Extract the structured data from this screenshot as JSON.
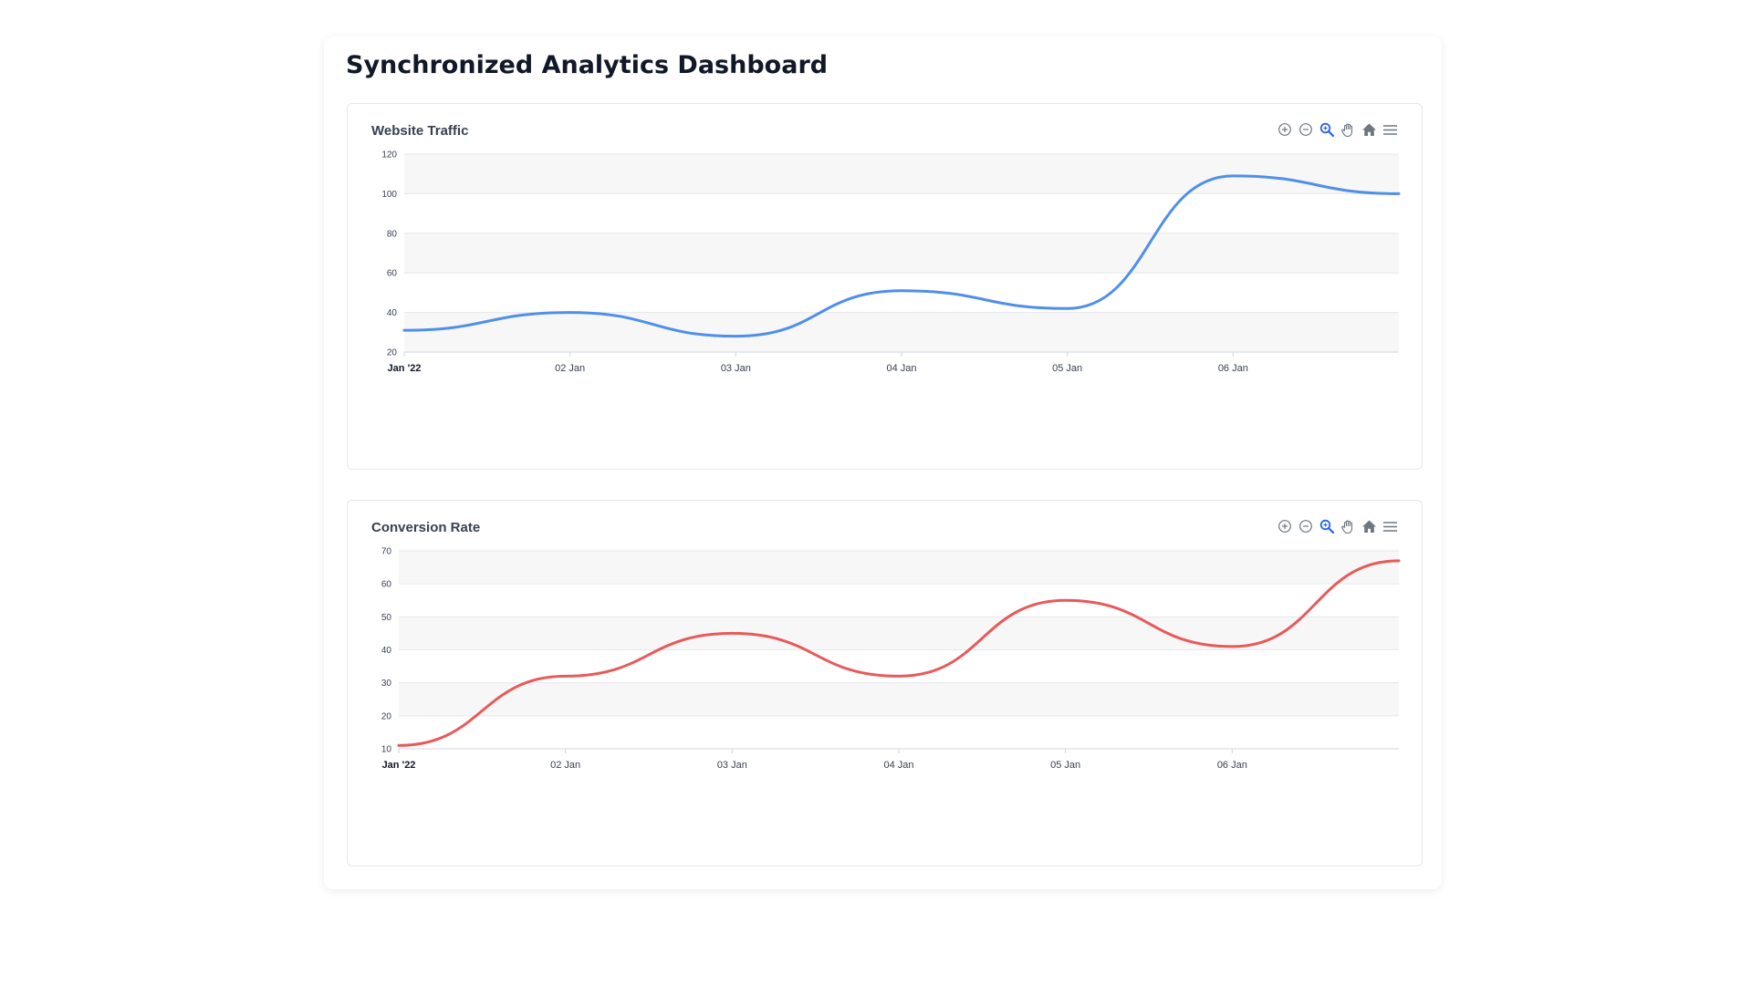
{
  "page": {
    "title": "Synchronized Analytics Dashboard"
  },
  "toolbar": {
    "icons": [
      "zoom-in-icon",
      "zoom-out-icon",
      "selection-zoom-icon",
      "pan-hand-icon",
      "reset-home-icon",
      "menu-icon"
    ],
    "icon_color": "#6e7681",
    "active_color": "#2563eb"
  },
  "chart_data": [
    {
      "type": "line",
      "title": "Website Traffic",
      "color": "#4f8fea",
      "x_tick_labels": [
        "Jan '22",
        "02 Jan",
        "03 Jan",
        "04 Jan",
        "05 Jan",
        "06 Jan"
      ],
      "x": [
        "2022-01-01",
        "2022-01-02",
        "2022-01-03",
        "2022-01-04",
        "2022-01-05",
        "2022-01-06",
        "2022-01-07"
      ],
      "values": [
        31,
        40,
        28,
        51,
        42,
        109,
        100
      ],
      "ylim": [
        20,
        120
      ],
      "yticks": [
        20,
        40,
        60,
        80,
        100,
        120
      ],
      "curve": "smooth",
      "grid": "horizontal, alternating row bands"
    },
    {
      "type": "line",
      "title": "Conversion Rate",
      "color": "#e85a5a",
      "x_tick_labels": [
        "Jan '22",
        "02 Jan",
        "03 Jan",
        "04 Jan",
        "05 Jan",
        "06 Jan"
      ],
      "x": [
        "2022-01-01",
        "2022-01-02",
        "2022-01-03",
        "2022-01-04",
        "2022-01-05",
        "2022-01-06",
        "2022-01-07"
      ],
      "values": [
        11,
        32,
        45,
        32,
        55,
        41,
        67
      ],
      "ylim": [
        10,
        70
      ],
      "yticks": [
        10,
        20,
        30,
        40,
        50,
        60,
        70
      ],
      "curve": "smooth",
      "grid": "horizontal, alternating row bands"
    }
  ]
}
